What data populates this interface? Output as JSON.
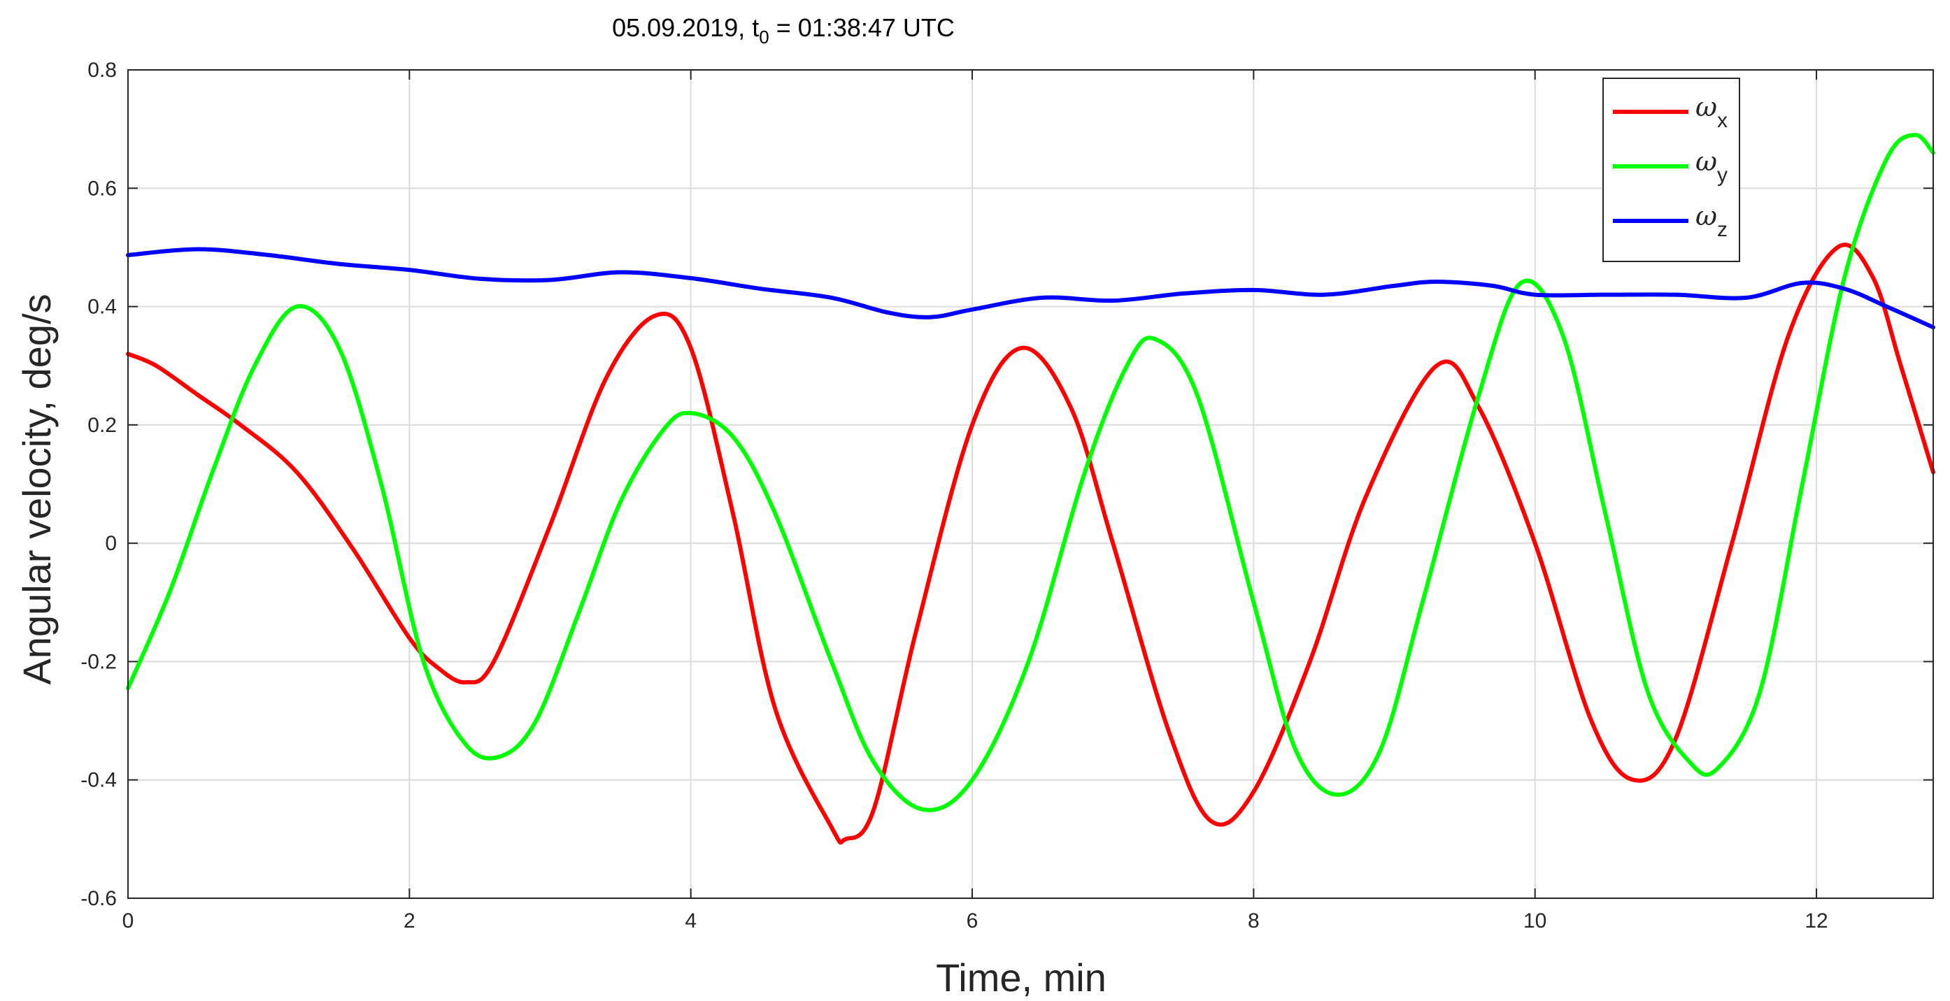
{
  "chart_data": {
    "type": "line",
    "title": {
      "date": "05.09.2019, t",
      "sub": "0",
      "rest": " = 01:38:47 UTC"
    },
    "xlabel": "Time, min",
    "ylabel": "Angular velocity, deg/s",
    "xlim": [
      0,
      12.83
    ],
    "ylim": [
      -0.6,
      0.8
    ],
    "xticks": [
      0,
      2,
      4,
      6,
      8,
      10,
      12
    ],
    "yticks": [
      -0.6,
      -0.4,
      -0.2,
      0,
      0.2,
      0.4,
      0.6,
      0.8
    ],
    "grid": true,
    "legend_position": "top-right",
    "series": [
      {
        "name": "ω",
        "sub": "x",
        "color": "#ff0000",
        "x": [
          0,
          0.2,
          0.5,
          0.8,
          1.2,
          1.6,
          2.0,
          2.2,
          2.4,
          2.6,
          3.0,
          3.4,
          3.75,
          4.0,
          4.3,
          4.6,
          5.0,
          5.1,
          5.3,
          5.6,
          6.0,
          6.35,
          6.7,
          7.0,
          7.4,
          7.7,
          8.0,
          8.4,
          8.8,
          9.3,
          9.6,
          10.0,
          10.4,
          10.7,
          11.0,
          11.4,
          11.8,
          12.15,
          12.4,
          12.6,
          12.83
        ],
        "y": [
          0.32,
          0.3,
          0.25,
          0.2,
          0.12,
          -0.01,
          -0.16,
          -0.21,
          -0.235,
          -0.2,
          0.03,
          0.28,
          0.385,
          0.33,
          0.05,
          -0.28,
          -0.48,
          -0.5,
          -0.45,
          -0.15,
          0.2,
          0.33,
          0.23,
          0.0,
          -0.32,
          -0.47,
          -0.42,
          -0.2,
          0.08,
          0.3,
          0.23,
          0.0,
          -0.3,
          -0.4,
          -0.33,
          0.0,
          0.35,
          0.5,
          0.45,
          0.3,
          0.12
        ]
      },
      {
        "name": "ω",
        "sub": "y",
        "color": "#00ff00",
        "x": [
          0,
          0.3,
          0.6,
          0.9,
          1.2,
          1.5,
          1.8,
          2.1,
          2.4,
          2.65,
          2.9,
          3.2,
          3.5,
          3.8,
          4.0,
          4.3,
          4.6,
          5.0,
          5.3,
          5.65,
          6.0,
          6.4,
          6.8,
          7.1,
          7.3,
          7.6,
          8.0,
          8.3,
          8.6,
          8.9,
          9.2,
          9.6,
          9.9,
          10.2,
          10.5,
          10.8,
          11.1,
          11.3,
          11.6,
          11.9,
          12.2,
          12.5,
          12.7,
          12.83
        ],
        "y": [
          -0.245,
          -0.08,
          0.12,
          0.3,
          0.4,
          0.33,
          0.1,
          -0.2,
          -0.34,
          -0.36,
          -0.3,
          -0.12,
          0.07,
          0.19,
          0.22,
          0.18,
          0.05,
          -0.2,
          -0.37,
          -0.45,
          -0.4,
          -0.2,
          0.12,
          0.3,
          0.345,
          0.25,
          -0.1,
          -0.35,
          -0.425,
          -0.35,
          -0.1,
          0.25,
          0.44,
          0.35,
          0.05,
          -0.25,
          -0.37,
          -0.38,
          -0.25,
          0.1,
          0.45,
          0.65,
          0.69,
          0.66
        ]
      },
      {
        "name": "ω",
        "sub": "z",
        "color": "#0000ff",
        "x": [
          0,
          0.5,
          1.0,
          1.5,
          2.0,
          2.5,
          3.0,
          3.5,
          4.0,
          4.5,
          5.0,
          5.4,
          5.7,
          6.0,
          6.5,
          7.0,
          7.5,
          8.0,
          8.5,
          9.0,
          9.3,
          9.7,
          10.0,
          10.5,
          11.0,
          11.5,
          11.9,
          12.2,
          12.5,
          12.83
        ],
        "y": [
          0.487,
          0.497,
          0.487,
          0.472,
          0.462,
          0.447,
          0.445,
          0.458,
          0.448,
          0.43,
          0.415,
          0.39,
          0.382,
          0.395,
          0.415,
          0.41,
          0.422,
          0.428,
          0.42,
          0.435,
          0.442,
          0.435,
          0.42,
          0.42,
          0.42,
          0.415,
          0.44,
          0.43,
          0.4,
          0.365
        ]
      }
    ]
  }
}
